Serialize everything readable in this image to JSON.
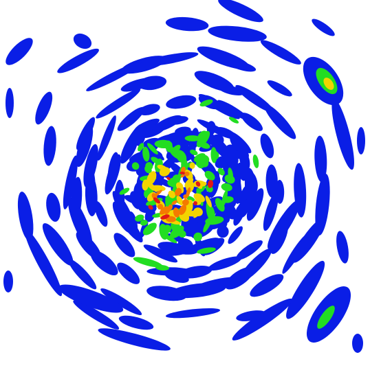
{
  "image": {
    "description_colors": {
      "background": "#ffffff",
      "level_1": "#0a1ee6",
      "level_2": "#22dd22",
      "level_3": "#f2d400",
      "level_4": "#f47a00",
      "level_5": "#e01818"
    }
  }
}
